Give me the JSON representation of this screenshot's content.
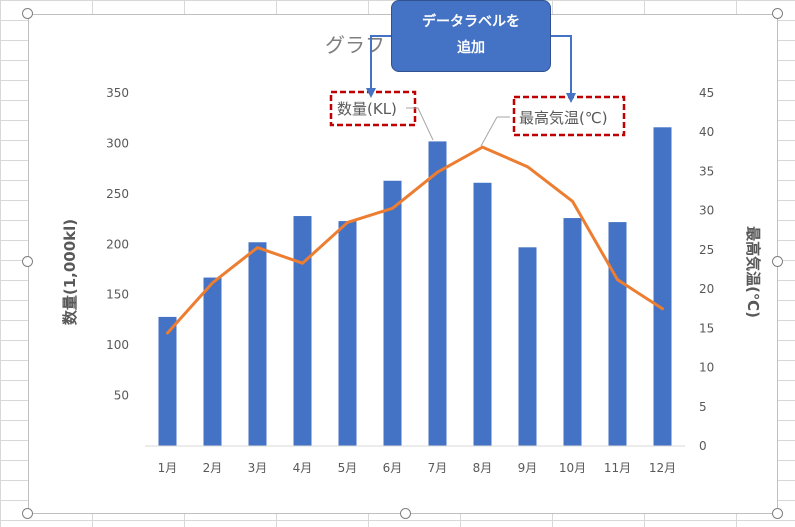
{
  "chart_data": {
    "type": "bar+line",
    "title": "グラフ",
    "categories": [
      "1月",
      "2月",
      "3月",
      "4月",
      "5月",
      "6月",
      "7月",
      "8月",
      "9月",
      "10月",
      "11月",
      "12月"
    ],
    "series": [
      {
        "name": "数量(KL)",
        "type": "bar",
        "axis": "left",
        "color": "#4472c4",
        "values": [
          128,
          167,
          202,
          228,
          223,
          263,
          302,
          261,
          197,
          226,
          222,
          316
        ]
      },
      {
        "name": "最高気温(℃)",
        "type": "line",
        "axis": "right",
        "color": "#ed7d31",
        "values": [
          14.4,
          20.8,
          25.3,
          23.3,
          28.5,
          30.3,
          34.9,
          38.1,
          35.6,
          31.2,
          21.2,
          17.5
        ]
      }
    ],
    "ylabel": "数量(1,000kl)",
    "ylabel_right": "最高気温(℃)",
    "ylim": [
      0,
      350
    ],
    "ylim_right": [
      0,
      45
    ],
    "yticks": [
      "50",
      "100",
      "150",
      "200",
      "250",
      "300",
      "350"
    ],
    "yticks_right": [
      "0",
      "5",
      "10",
      "15",
      "20",
      "25",
      "30",
      "35",
      "40",
      "45"
    ],
    "grid": false,
    "legend": "none"
  },
  "labels": {
    "series1": "数量(KL)",
    "series2": "最高気温(℃)"
  },
  "callout": {
    "text_line1": "データラベルを",
    "text_line2": "追加"
  },
  "colors": {
    "bar": "#4472c4",
    "line": "#ed7d31",
    "dashed_box": "#c00000"
  }
}
